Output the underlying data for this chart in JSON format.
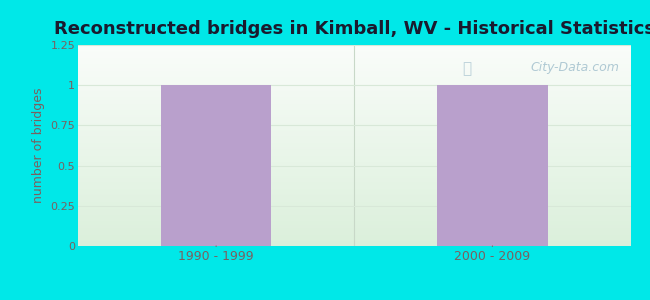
{
  "title": "Reconstructed bridges in Kimball, WV - Historical Statistics",
  "categories": [
    "1990 - 1999",
    "2000 - 2009"
  ],
  "values": [
    1.0,
    1.0
  ],
  "bar_color": "#b9a0cc",
  "ylabel": "number of bridges",
  "ylim": [
    0,
    1.25
  ],
  "yticks": [
    0,
    0.25,
    0.5,
    0.75,
    1.0,
    1.25
  ],
  "ytick_labels": [
    "0",
    "0.25",
    "0.5",
    "0.75",
    "1",
    "1.25"
  ],
  "background_outer": "#00e8e8",
  "title_fontsize": 13,
  "ylabel_fontsize": 9,
  "ylabel_color": "#7a6060",
  "tick_label_color": "#7a6060",
  "watermark": "City-Data.com",
  "watermark_color": "#a8c4d0",
  "grid_color": "#d8e8d8",
  "separator_color": "#c8d8c8"
}
